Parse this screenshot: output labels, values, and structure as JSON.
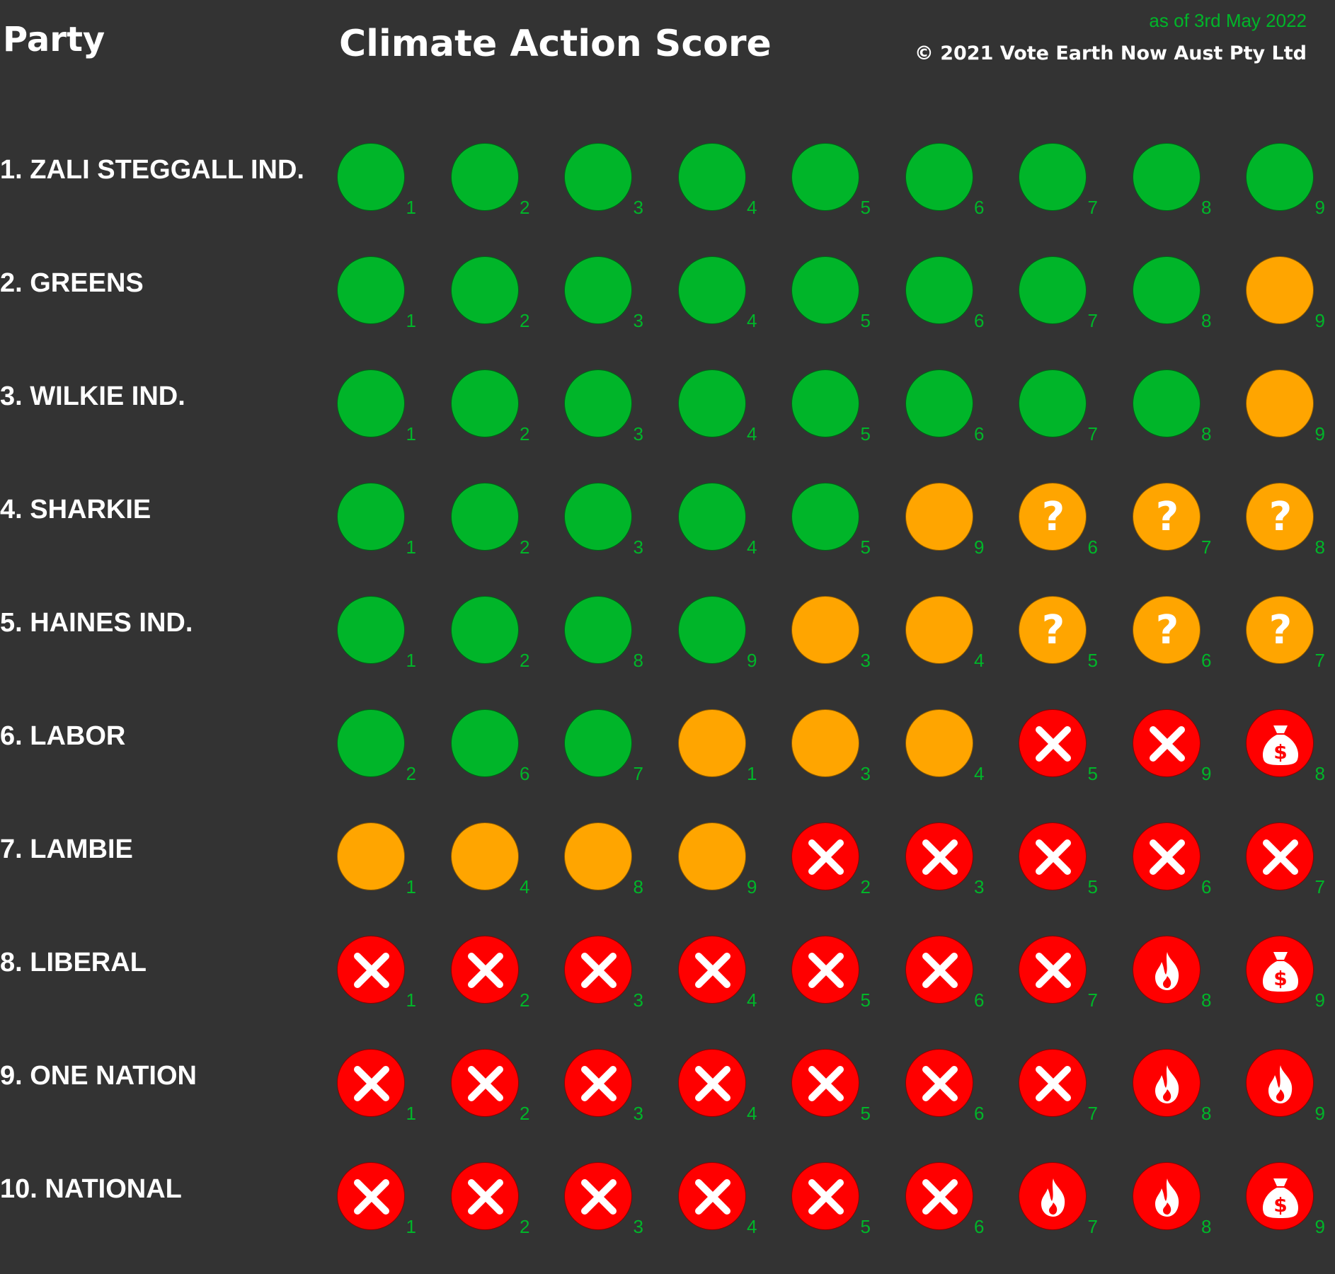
{
  "header": {
    "party_label": "Party",
    "score_label": "Climate Action Score",
    "as_of": "as of 3rd May 2022",
    "copyright": "© 2021 Vote Earth Now Aust Pty Ltd"
  },
  "colors": {
    "background": "#333333",
    "good": "#00b529",
    "partial": "#ffa500",
    "bad": "#ff0000",
    "number": "#00b529"
  },
  "legend_icons": {
    "good": "green-circle",
    "partial": "orange-circle",
    "unknown": "orange-question-icon",
    "no": "red-x-icon",
    "fire": "red-fire-icon",
    "money": "red-money-bag-icon"
  },
  "parties": [
    {
      "name": "1. ZALI STEGGALL IND.",
      "scores": [
        {
          "status": "good",
          "num": "1"
        },
        {
          "status": "good",
          "num": "2"
        },
        {
          "status": "good",
          "num": "3"
        },
        {
          "status": "good",
          "num": "4"
        },
        {
          "status": "good",
          "num": "5"
        },
        {
          "status": "good",
          "num": "6"
        },
        {
          "status": "good",
          "num": "7"
        },
        {
          "status": "good",
          "num": "8"
        },
        {
          "status": "good",
          "num": "9"
        }
      ]
    },
    {
      "name": "2. GREENS",
      "scores": [
        {
          "status": "good",
          "num": "1"
        },
        {
          "status": "good",
          "num": "2"
        },
        {
          "status": "good",
          "num": "3"
        },
        {
          "status": "good",
          "num": "4"
        },
        {
          "status": "good",
          "num": "5"
        },
        {
          "status": "good",
          "num": "6"
        },
        {
          "status": "good",
          "num": "7"
        },
        {
          "status": "good",
          "num": "8"
        },
        {
          "status": "partial",
          "num": "9"
        }
      ]
    },
    {
      "name": "3. WILKIE IND.",
      "scores": [
        {
          "status": "good",
          "num": "1"
        },
        {
          "status": "good",
          "num": "2"
        },
        {
          "status": "good",
          "num": "3"
        },
        {
          "status": "good",
          "num": "4"
        },
        {
          "status": "good",
          "num": "5"
        },
        {
          "status": "good",
          "num": "6"
        },
        {
          "status": "good",
          "num": "7"
        },
        {
          "status": "good",
          "num": "8"
        },
        {
          "status": "partial",
          "num": "9"
        }
      ]
    },
    {
      "name": "4. SHARKIE",
      "scores": [
        {
          "status": "good",
          "num": "1"
        },
        {
          "status": "good",
          "num": "2"
        },
        {
          "status": "good",
          "num": "3"
        },
        {
          "status": "good",
          "num": "4"
        },
        {
          "status": "good",
          "num": "5"
        },
        {
          "status": "partial",
          "num": "9"
        },
        {
          "status": "unknown",
          "num": "6"
        },
        {
          "status": "unknown",
          "num": "7"
        },
        {
          "status": "unknown",
          "num": "8"
        }
      ]
    },
    {
      "name": "5. HAINES IND.",
      "scores": [
        {
          "status": "good",
          "num": "1"
        },
        {
          "status": "good",
          "num": "2"
        },
        {
          "status": "good",
          "num": "8"
        },
        {
          "status": "good",
          "num": "9"
        },
        {
          "status": "partial",
          "num": "3"
        },
        {
          "status": "partial",
          "num": "4"
        },
        {
          "status": "unknown",
          "num": "5"
        },
        {
          "status": "unknown",
          "num": "6"
        },
        {
          "status": "unknown",
          "num": "7"
        }
      ]
    },
    {
      "name": "6. LABOR",
      "scores": [
        {
          "status": "good",
          "num": "2"
        },
        {
          "status": "good",
          "num": "6"
        },
        {
          "status": "good",
          "num": "7"
        },
        {
          "status": "partial",
          "num": "1"
        },
        {
          "status": "partial",
          "num": "3"
        },
        {
          "status": "partial",
          "num": "4"
        },
        {
          "status": "no",
          "num": "5"
        },
        {
          "status": "no",
          "num": "9"
        },
        {
          "status": "money",
          "num": "8"
        }
      ]
    },
    {
      "name": "7. LAMBIE",
      "scores": [
        {
          "status": "partial",
          "num": "1"
        },
        {
          "status": "partial",
          "num": "4"
        },
        {
          "status": "partial",
          "num": "8"
        },
        {
          "status": "partial",
          "num": "9"
        },
        {
          "status": "no",
          "num": "2"
        },
        {
          "status": "no",
          "num": "3"
        },
        {
          "status": "no",
          "num": "5"
        },
        {
          "status": "no",
          "num": "6"
        },
        {
          "status": "no",
          "num": "7"
        }
      ]
    },
    {
      "name": "8. LIBERAL",
      "scores": [
        {
          "status": "no",
          "num": "1"
        },
        {
          "status": "no",
          "num": "2"
        },
        {
          "status": "no",
          "num": "3"
        },
        {
          "status": "no",
          "num": "4"
        },
        {
          "status": "no",
          "num": "5"
        },
        {
          "status": "no",
          "num": "6"
        },
        {
          "status": "no",
          "num": "7"
        },
        {
          "status": "fire",
          "num": "8"
        },
        {
          "status": "money",
          "num": "9"
        }
      ]
    },
    {
      "name": "9. ONE NATION",
      "scores": [
        {
          "status": "no",
          "num": "1"
        },
        {
          "status": "no",
          "num": "2"
        },
        {
          "status": "no",
          "num": "3"
        },
        {
          "status": "no",
          "num": "4"
        },
        {
          "status": "no",
          "num": "5"
        },
        {
          "status": "no",
          "num": "6"
        },
        {
          "status": "no",
          "num": "7"
        },
        {
          "status": "fire",
          "num": "8"
        },
        {
          "status": "fire",
          "num": "9"
        }
      ]
    },
    {
      "name": "10.  NATIONAL",
      "scores": [
        {
          "status": "no",
          "num": "1"
        },
        {
          "status": "no",
          "num": "2"
        },
        {
          "status": "no",
          "num": "3"
        },
        {
          "status": "no",
          "num": "4"
        },
        {
          "status": "no",
          "num": "5"
        },
        {
          "status": "no",
          "num": "6"
        },
        {
          "status": "fire",
          "num": "7"
        },
        {
          "status": "fire",
          "num": "8"
        },
        {
          "status": "money",
          "num": "9"
        }
      ]
    }
  ]
}
